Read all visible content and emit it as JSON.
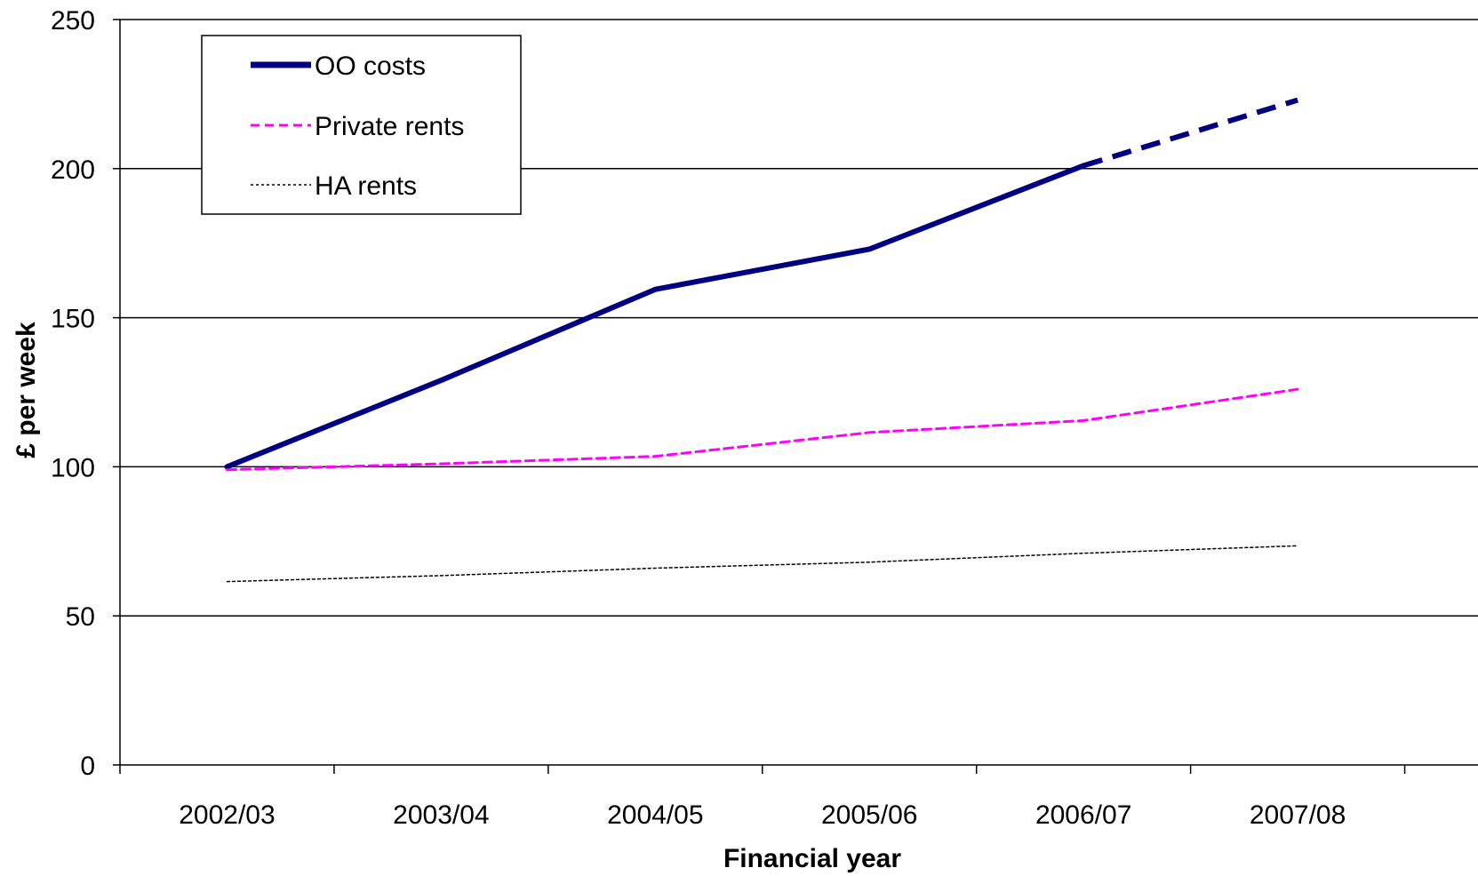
{
  "chart_data": {
    "type": "line",
    "title": "",
    "xlabel": "Financial year",
    "ylabel": "£ per week",
    "categories": [
      "2002/03",
      "2003/04",
      "2004/05",
      "2005/06",
      "2006/07",
      "2007/08"
    ],
    "ylim": [
      0,
      250
    ],
    "yticks": [
      0,
      50,
      100,
      150,
      200,
      250
    ],
    "grid": true,
    "legend_position": "top-left",
    "series": [
      {
        "name": "OO costs",
        "values": [
          100,
          129,
          159.5,
          173,
          201,
          223
        ],
        "color": "#000080",
        "style": "solid",
        "projected_from_index": 4
      },
      {
        "name": "Private rents",
        "values": [
          99,
          101,
          103.5,
          111.5,
          115.5,
          126
        ],
        "color": "#ff00ff",
        "style": "dashed"
      },
      {
        "name": "HA rents",
        "values": [
          61.5,
          63.5,
          66,
          68,
          71,
          73.5
        ],
        "color": "#000000",
        "style": "dotted"
      }
    ]
  }
}
